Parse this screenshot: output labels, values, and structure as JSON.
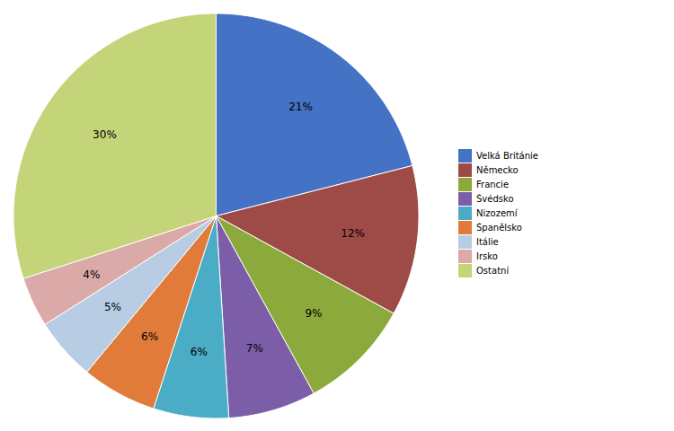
{
  "chart_data": {
    "type": "pie",
    "categories": [
      "Velká Británie",
      "Německo",
      "Francie",
      "Švédsko",
      "Nizozemí",
      "Španělsko",
      "Itálie",
      "Irsko",
      "Ostatní"
    ],
    "values": [
      21,
      12,
      9,
      7,
      6,
      6,
      5,
      4,
      30
    ],
    "value_labels": [
      "21%",
      "12%",
      "9%",
      "7%",
      "6%",
      "6%",
      "5%",
      "4%",
      "30%"
    ],
    "colors": [
      "#4472C4",
      "#9E4B47",
      "#8CAA3B",
      "#7B5EA7",
      "#4BACC6",
      "#E07B39",
      "#B8CCE4",
      "#DBA9A7",
      "#C4D479"
    ],
    "data_labels": true,
    "legend": "right"
  }
}
